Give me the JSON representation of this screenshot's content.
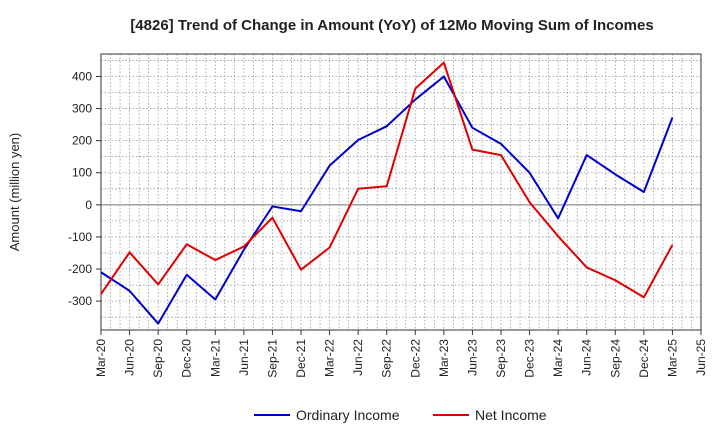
{
  "chart_data": {
    "type": "line",
    "title": "[4826]  Trend of Change in Amount (YoY) of 12Mo Moving Sum of Incomes",
    "xlabel": "",
    "ylabel": "Amount (million yen)",
    "categories": [
      "Mar-20",
      "Jun-20",
      "Sep-20",
      "Dec-20",
      "Mar-21",
      "Jun-21",
      "Sep-21",
      "Dec-21",
      "Mar-22",
      "Jun-22",
      "Sep-22",
      "Dec-22",
      "Mar-23",
      "Jun-23",
      "Sep-23",
      "Dec-23",
      "Mar-24",
      "Jun-24",
      "Sep-24",
      "Dec-24",
      "Mar-25",
      "Jun-25"
    ],
    "ylim": [
      -390,
      470
    ],
    "yticks": [
      -300,
      -200,
      -100,
      0,
      100,
      200,
      300,
      400
    ],
    "ytick_labels": [
      "-300",
      "-200",
      "-100",
      "0",
      "100",
      "200",
      "300",
      "400"
    ],
    "grid": true,
    "legend_position": "bottom",
    "series": [
      {
        "name": "Ordinary Income",
        "color": "#0000cc",
        "values": [
          -210,
          -268,
          -370,
          -218,
          -295,
          -140,
          -5,
          -20,
          122,
          202,
          245,
          328,
          400,
          240,
          190,
          100,
          -42,
          155,
          95,
          40,
          272,
          null
        ]
      },
      {
        "name": "Net Income",
        "color": "#dd0000",
        "values": [
          -278,
          -148,
          -248,
          -123,
          -172,
          -130,
          -40,
          -202,
          -133,
          50,
          58,
          362,
          443,
          172,
          155,
          8,
          -98,
          -195,
          -235,
          -288,
          -125,
          null
        ]
      }
    ]
  }
}
